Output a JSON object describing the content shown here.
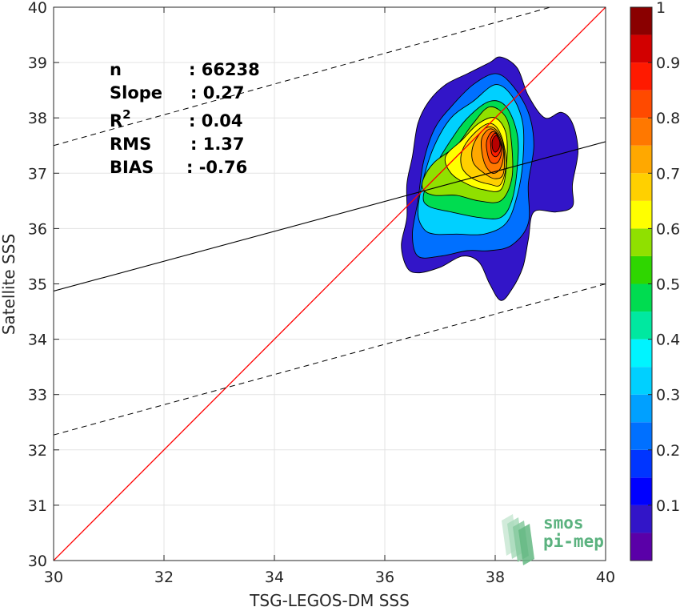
{
  "chart_data": {
    "type": "contour",
    "xlabel": "TSG-LEGOS-DM SSS",
    "ylabel": "Satellite SSS",
    "xlim": [
      30,
      40
    ],
    "ylim": [
      30,
      40
    ],
    "xticks": [
      "30",
      "32",
      "34",
      "36",
      "38",
      "40"
    ],
    "yticks": [
      "30",
      "31",
      "32",
      "33",
      "34",
      "35",
      "36",
      "37",
      "38",
      "39",
      "40"
    ],
    "grid": true,
    "stats": [
      {
        "label": "n",
        "value": ": 66238"
      },
      {
        "label": "Slope",
        "value": ": 0.27"
      },
      {
        "label": "R",
        "sup": "2",
        "value": ": 0.04"
      },
      {
        "label": "RMS",
        "value": ": 1.37"
      },
      {
        "label": "BIAS",
        "value": ": -0.76"
      }
    ],
    "identity_line": {
      "x": [
        30,
        40
      ],
      "y": [
        30,
        40
      ],
      "color": "#ff0000"
    },
    "regression_line": {
      "x": [
        30,
        40
      ],
      "y": [
        34.87,
        37.57
      ],
      "color": "#000000"
    },
    "confidence_bounds": [
      {
        "x": [
          30,
          39
        ],
        "y": [
          37.5,
          40
        ]
      },
      {
        "x": [
          30,
          40
        ],
        "y": [
          32.27,
          35.0
        ]
      }
    ],
    "density_peak": {
      "x": 38.05,
      "y": 37.6
    },
    "colorbar": {
      "levels": [
        0,
        0.05,
        0.1,
        0.15,
        0.2,
        0.25,
        0.3,
        0.35,
        0.4,
        0.45,
        0.5,
        0.55,
        0.6,
        0.65,
        0.7,
        0.75,
        0.8,
        0.85,
        0.9,
        0.95,
        1.0
      ],
      "tick_labels": [
        "0.1",
        "0.2",
        "0.3",
        "0.4",
        "0.5",
        "0.6",
        "0.7",
        "0.8",
        "0.9",
        "1"
      ],
      "tick_values": [
        0.1,
        0.2,
        0.3,
        0.4,
        0.5,
        0.6,
        0.7,
        0.8,
        0.9,
        1.0
      ],
      "colors": [
        "#ffffff",
        "#5a00a8",
        "#3215c8",
        "#0000ff",
        "#0035ff",
        "#0070ff",
        "#00a0ff",
        "#00d0ff",
        "#00f4ff",
        "#00e8a0",
        "#00dc50",
        "#2fd600",
        "#90e000",
        "#ffff00",
        "#ffd000",
        "#ffa800",
        "#ff7800",
        "#ff4a00",
        "#ff1a00",
        "#d20000",
        "#8a0000"
      ]
    },
    "contours": [
      [
        [
          36.3,
          35.7
        ],
        [
          36.4,
          36.2
        ],
        [
          36.4,
          36.8
        ],
        [
          36.5,
          37.3
        ],
        [
          36.6,
          37.9
        ],
        [
          36.8,
          38.3
        ],
        [
          37.1,
          38.6
        ],
        [
          37.5,
          38.8
        ],
        [
          37.9,
          39.0
        ],
        [
          38.1,
          39.1
        ],
        [
          38.4,
          38.9
        ],
        [
          38.6,
          38.4
        ],
        [
          38.9,
          38.0
        ],
        [
          39.2,
          38.1
        ],
        [
          39.4,
          37.9
        ],
        [
          39.5,
          37.4
        ],
        [
          39.4,
          36.8
        ],
        [
          39.4,
          36.4
        ],
        [
          39.1,
          36.3
        ],
        [
          38.7,
          36.3
        ],
        [
          38.6,
          35.8
        ],
        [
          38.5,
          35.3
        ],
        [
          38.3,
          34.9
        ],
        [
          38.1,
          34.7
        ],
        [
          37.9,
          35.0
        ],
        [
          37.7,
          35.4
        ],
        [
          37.4,
          35.5
        ],
        [
          37.0,
          35.3
        ],
        [
          36.6,
          35.2
        ],
        [
          36.4,
          35.3
        ]
      ],
      [
        [
          36.5,
          35.9
        ],
        [
          36.6,
          36.5
        ],
        [
          36.7,
          37.2
        ],
        [
          36.9,
          37.8
        ],
        [
          37.2,
          38.2
        ],
        [
          37.6,
          38.6
        ],
        [
          38.0,
          38.8
        ],
        [
          38.3,
          38.6
        ],
        [
          38.6,
          38.1
        ],
        [
          38.7,
          37.5
        ],
        [
          38.6,
          36.8
        ],
        [
          38.6,
          36.1
        ],
        [
          38.3,
          35.7
        ],
        [
          37.9,
          35.6
        ],
        [
          37.5,
          35.6
        ],
        [
          37.0,
          35.5
        ],
        [
          36.6,
          35.5
        ]
      ],
      [
        [
          36.6,
          36.3
        ],
        [
          36.7,
          36.9
        ],
        [
          36.9,
          37.5
        ],
        [
          37.2,
          38.0
        ],
        [
          37.6,
          38.3
        ],
        [
          38.0,
          38.6
        ],
        [
          38.3,
          38.4
        ],
        [
          38.5,
          37.9
        ],
        [
          38.5,
          37.2
        ],
        [
          38.4,
          36.6
        ],
        [
          38.2,
          36.1
        ],
        [
          37.8,
          35.9
        ],
        [
          37.3,
          35.9
        ],
        [
          36.9,
          35.9
        ],
        [
          36.7,
          36.0
        ]
      ],
      [
        [
          36.7,
          36.6
        ],
        [
          36.9,
          37.1
        ],
        [
          37.2,
          37.6
        ],
        [
          37.5,
          38.0
        ],
        [
          37.9,
          38.3
        ],
        [
          38.2,
          38.2
        ],
        [
          38.4,
          37.7
        ],
        [
          38.4,
          37.1
        ],
        [
          38.3,
          36.5
        ],
        [
          38.1,
          36.2
        ],
        [
          37.7,
          36.2
        ],
        [
          37.2,
          36.3
        ],
        [
          36.8,
          36.4
        ]
      ],
      [
        [
          36.7,
          36.9
        ],
        [
          36.9,
          37.2
        ],
        [
          37.3,
          37.5
        ],
        [
          37.6,
          37.9
        ],
        [
          37.9,
          38.2
        ],
        [
          38.2,
          38.0
        ],
        [
          38.3,
          37.5
        ],
        [
          38.3,
          36.9
        ],
        [
          38.1,
          36.5
        ],
        [
          37.7,
          36.5
        ],
        [
          37.3,
          36.6
        ],
        [
          36.9,
          36.6
        ],
        [
          36.7,
          36.7
        ]
      ],
      [
        [
          37.1,
          37.3
        ],
        [
          37.4,
          37.6
        ],
        [
          37.7,
          37.9
        ],
        [
          38.0,
          38.0
        ],
        [
          38.2,
          37.7
        ],
        [
          38.2,
          37.1
        ],
        [
          38.1,
          36.7
        ],
        [
          37.8,
          36.7
        ],
        [
          37.5,
          36.8
        ],
        [
          37.2,
          37.0
        ]
      ],
      [
        [
          37.4,
          37.4
        ],
        [
          37.6,
          37.7
        ],
        [
          37.9,
          37.9
        ],
        [
          38.1,
          37.7
        ],
        [
          38.2,
          37.2
        ],
        [
          38.1,
          36.8
        ],
        [
          37.9,
          36.8
        ],
        [
          37.6,
          36.9
        ],
        [
          37.4,
          37.1
        ]
      ],
      [
        [
          37.6,
          37.5
        ],
        [
          37.8,
          37.8
        ],
        [
          38.0,
          37.8
        ],
        [
          38.15,
          37.5
        ],
        [
          38.15,
          37.0
        ],
        [
          38.0,
          36.9
        ],
        [
          37.8,
          37.0
        ],
        [
          37.6,
          37.2
        ]
      ],
      [
        [
          37.75,
          37.6
        ],
        [
          37.9,
          37.8
        ],
        [
          38.05,
          37.7
        ],
        [
          38.15,
          37.4
        ],
        [
          38.1,
          37.1
        ],
        [
          37.95,
          37.0
        ],
        [
          37.8,
          37.2
        ]
      ],
      [
        [
          37.85,
          37.6
        ],
        [
          37.95,
          37.75
        ],
        [
          38.08,
          37.65
        ],
        [
          38.12,
          37.4
        ],
        [
          38.05,
          37.2
        ],
        [
          37.92,
          37.2
        ],
        [
          37.85,
          37.4
        ]
      ],
      [
        [
          37.92,
          37.62
        ],
        [
          38.0,
          37.72
        ],
        [
          38.08,
          37.6
        ],
        [
          38.1,
          37.42
        ],
        [
          38.02,
          37.3
        ],
        [
          37.94,
          37.35
        ],
        [
          37.92,
          37.5
        ]
      ],
      [
        [
          37.95,
          37.6
        ],
        [
          38.02,
          37.68
        ],
        [
          38.08,
          37.58
        ],
        [
          38.07,
          37.45
        ],
        [
          38.0,
          37.38
        ],
        [
          37.95,
          37.45
        ]
      ]
    ],
    "contour_colors": [
      "#3215c8",
      "#0070ff",
      "#00d0ff",
      "#00dc50",
      "#90e000",
      "#ffff00",
      "#ffd000",
      "#ffa800",
      "#ff7800",
      "#ff4a00",
      "#ff1a00",
      "#b80000"
    ],
    "watermark": [
      "smos",
      "pi-mep"
    ]
  }
}
